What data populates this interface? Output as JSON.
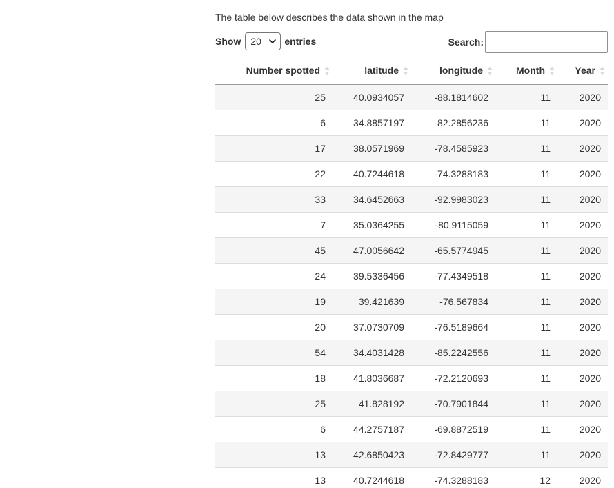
{
  "caption": "The table below describes the data shown in the map",
  "length_control": {
    "show_label": "Show",
    "selected": "20",
    "entries_label": "entries"
  },
  "search": {
    "label": "Search:",
    "value": ""
  },
  "table": {
    "columns": [
      "Number spotted",
      "latitude",
      "longitude",
      "Month",
      "Year"
    ],
    "rows": [
      [
        "25",
        "40.0934057",
        "-88.1814602",
        "11",
        "2020"
      ],
      [
        "6",
        "34.8857197",
        "-82.2856236",
        "11",
        "2020"
      ],
      [
        "17",
        "38.0571969",
        "-78.4585923",
        "11",
        "2020"
      ],
      [
        "22",
        "40.7244618",
        "-74.3288183",
        "11",
        "2020"
      ],
      [
        "33",
        "34.6452663",
        "-92.9983023",
        "11",
        "2020"
      ],
      [
        "7",
        "35.0364255",
        "-80.9115059",
        "11",
        "2020"
      ],
      [
        "45",
        "47.0056642",
        "-65.5774945",
        "11",
        "2020"
      ],
      [
        "24",
        "39.5336456",
        "-77.4349518",
        "11",
        "2020"
      ],
      [
        "19",
        "39.421639",
        "-76.567834",
        "11",
        "2020"
      ],
      [
        "20",
        "37.0730709",
        "-76.5189664",
        "11",
        "2020"
      ],
      [
        "54",
        "34.4031428",
        "-85.2242556",
        "11",
        "2020"
      ],
      [
        "18",
        "41.8036687",
        "-72.2120693",
        "11",
        "2020"
      ],
      [
        "25",
        "41.828192",
        "-70.7901844",
        "11",
        "2020"
      ],
      [
        "6",
        "44.2757187",
        "-69.8872519",
        "11",
        "2020"
      ],
      [
        "13",
        "42.6850423",
        "-72.8429777",
        "11",
        "2020"
      ],
      [
        "13",
        "40.7244618",
        "-74.3288183",
        "12",
        "2020"
      ]
    ]
  }
}
